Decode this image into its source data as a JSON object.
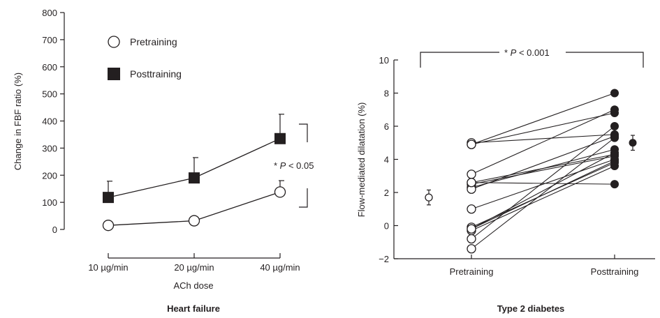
{
  "chart_data": [
    {
      "type": "line",
      "caption": "Heart failure",
      "xlabel": "ACh dose",
      "ylabel": "Change in FBF ratio (%)",
      "categories": [
        "10 µg/min",
        "20 µg/min",
        "40 µg/min"
      ],
      "ylim": [
        0,
        800
      ],
      "yticks": [
        0,
        100,
        200,
        300,
        400,
        500,
        600,
        700,
        800
      ],
      "grid": false,
      "legend_position": "top-left",
      "series": [
        {
          "name": "Pretraining",
          "marker": "open-circle",
          "values": [
            15,
            32,
            138
          ],
          "error_upper": [
            null,
            null,
            180
          ]
        },
        {
          "name": "Posttraining",
          "marker": "filled-square",
          "values": [
            118,
            190,
            335
          ],
          "error_upper": [
            178,
            265,
            425
          ]
        }
      ],
      "annotation": {
        "star": "* ",
        "p": "P",
        "text": " < 0.05"
      }
    },
    {
      "type": "scatter",
      "caption": "Type 2 diabetes",
      "xlabel": "",
      "ylabel": "Flow-mediated dilatation (%)",
      "categories": [
        "Pretraining",
        "Posttraining"
      ],
      "ylim": [
        -2,
        10
      ],
      "yticks": [
        -2,
        0,
        2,
        4,
        6,
        8,
        10
      ],
      "grid": false,
      "paired_values": [
        [
          5.0,
          5.5
        ],
        [
          4.9,
          6.8
        ],
        [
          3.1,
          7.0
        ],
        [
          2.6,
          4.3
        ],
        [
          2.5,
          4.2
        ],
        [
          2.3,
          4.6
        ],
        [
          2.2,
          5.4
        ],
        [
          1.0,
          4.0
        ],
        [
          -0.1,
          3.8
        ],
        [
          -0.2,
          4.4
        ],
        [
          -0.3,
          3.6
        ],
        [
          -0.8,
          6.0
        ],
        [
          -1.4,
          5.3
        ],
        [
          2.6,
          2.5
        ],
        [
          4.9,
          8.0
        ],
        [
          -0.2,
          3.9
        ]
      ],
      "mean": [
        {
          "category": "Pretraining",
          "value": 1.7,
          "error": 0.45
        },
        {
          "category": "Posttraining",
          "value": 5.0,
          "error": 0.45
        }
      ],
      "annotation": {
        "star": "* ",
        "p": "P",
        "text": " < 0.001"
      }
    }
  ]
}
